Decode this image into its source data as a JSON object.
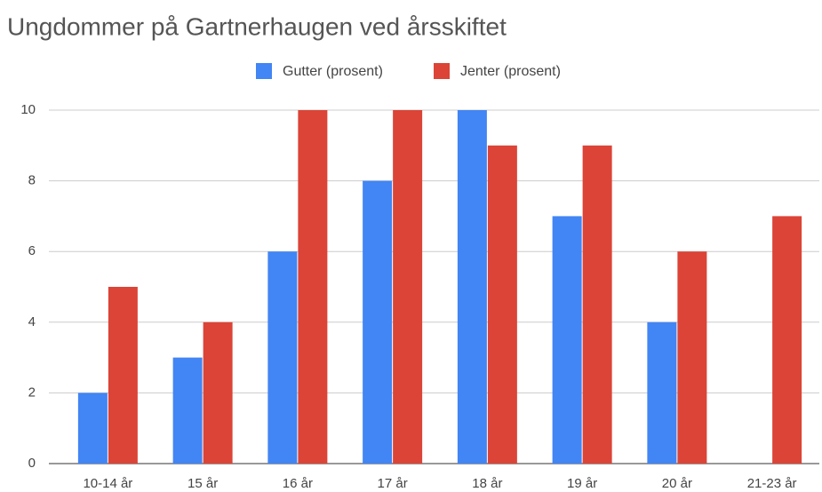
{
  "chart_data": {
    "type": "bar",
    "title": "Ungdommer på Gartnerhaugen ved årsskiftet",
    "categories": [
      "10-14 år",
      "15 år",
      "16 år",
      "17 år",
      "18 år",
      "19 år",
      "20 år",
      "21-23 år"
    ],
    "series": [
      {
        "name": "Gutter (prosent)",
        "color": "#4285f4",
        "values": [
          2,
          3,
          6,
          8,
          10,
          7,
          4,
          0
        ]
      },
      {
        "name": "Jenter (prosent)",
        "color": "#db4437",
        "values": [
          5,
          4,
          10,
          10,
          9,
          9,
          6,
          7
        ]
      }
    ],
    "ylim": [
      0,
      10
    ],
    "yticks": [
      0,
      2,
      4,
      6,
      8,
      10
    ],
    "grid": true,
    "legend": "top"
  }
}
